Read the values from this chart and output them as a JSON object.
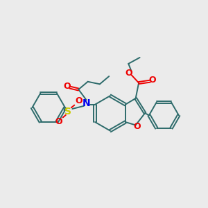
{
  "bg_color": "#ebebeb",
  "bond_color": "#2d6b6b",
  "O_color": "#ee0000",
  "N_color": "#0000ee",
  "S_color": "#cccc00",
  "figsize": [
    3.0,
    3.0
  ],
  "dpi": 100,
  "xlim": [
    0,
    10
  ],
  "ylim": [
    0,
    10
  ]
}
